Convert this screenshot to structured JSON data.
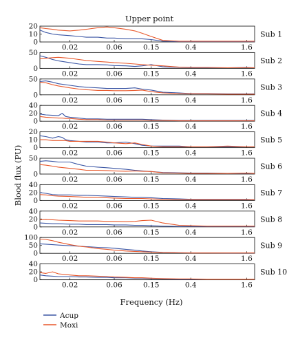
{
  "chart_data": {
    "type": "line",
    "title": "Upper point",
    "xlabel": "Frequency (Hz)",
    "ylabel": "Blood flux (PU)",
    "x_scale": "log",
    "xlim": [
      0.0095,
      1.95
    ],
    "x_ticks": [
      0.02,
      0.06,
      0.15,
      0.4,
      1.6
    ],
    "x_tick_labels": [
      "0.02",
      "0.06",
      "0.15",
      "0.4",
      "1.6"
    ],
    "legend": {
      "position": "bottom-left",
      "entries": [
        "Acup",
        "Moxi"
      ]
    },
    "colors": {
      "Acup": "#3a55a4",
      "Moxi": "#e8572a"
    },
    "panels": [
      {
        "label": "Sub 1",
        "ylim": [
          0,
          20
        ],
        "yticks": [
          0,
          10,
          20
        ],
        "x": [
          0.0095,
          0.011,
          0.013,
          0.015,
          0.02,
          0.025,
          0.03,
          0.04,
          0.05,
          0.06,
          0.08,
          0.1,
          0.12,
          0.15,
          0.2,
          0.3,
          0.4,
          0.6,
          1,
          1.6,
          1.95
        ],
        "series": [
          {
            "name": "Acup",
            "values": [
              15,
              12,
              10,
              9,
              8,
              7,
              6,
              6,
              5,
              5,
              4,
              4,
              4,
              3,
              1,
              0.5,
              0.5,
              0.5,
              0.5,
              0.5,
              0.5
            ]
          },
          {
            "name": "Moxi",
            "values": [
              18,
              17,
              16,
              15,
              14,
              15,
              16,
              18,
              19,
              18,
              16,
              14,
              11,
              7,
              2,
              1,
              1,
              1,
              1,
              1,
              1
            ]
          }
        ]
      },
      {
        "label": "Sub 2",
        "ylim": [
          0,
          50
        ],
        "yticks": [
          0,
          50
        ],
        "x": [
          0.0095,
          0.011,
          0.013,
          0.015,
          0.02,
          0.025,
          0.03,
          0.04,
          0.05,
          0.06,
          0.08,
          0.1,
          0.12,
          0.15,
          0.2,
          0.3,
          0.4,
          0.6,
          1,
          1.6,
          1.95
        ],
        "series": [
          {
            "name": "Acup",
            "values": [
              40,
              35,
              28,
              24,
              18,
              14,
              12,
              12,
              11,
              9,
              8,
              6,
              8,
              12,
              5,
              3,
              2,
              2,
              2,
              3,
              2
            ]
          },
          {
            "name": "Moxi",
            "values": [
              30,
              32,
              34,
              35,
              32,
              28,
              25,
              22,
              20,
              18,
              16,
              14,
              12,
              10,
              8,
              4,
              3,
              3,
              2,
              2,
              2
            ]
          }
        ]
      },
      {
        "label": "Sub 3",
        "ylim": [
          0,
          50
        ],
        "yticks": [
          0,
          50
        ],
        "x": [
          0.0095,
          0.011,
          0.013,
          0.015,
          0.02,
          0.025,
          0.03,
          0.04,
          0.05,
          0.06,
          0.08,
          0.1,
          0.12,
          0.15,
          0.2,
          0.3,
          0.4,
          0.6,
          1,
          1.6,
          1.95
        ],
        "series": [
          {
            "name": "Acup",
            "values": [
              42,
              44,
              40,
              35,
              30,
              26,
              24,
              22,
              20,
              20,
              20,
              22,
              18,
              15,
              8,
              6,
              4,
              4,
              3,
              3,
              3
            ]
          },
          {
            "name": "Moxi",
            "values": [
              40,
              38,
              32,
              28,
              22,
              18,
              16,
              14,
              14,
              13,
              13,
              14,
              15,
              10,
              6,
              4,
              3,
              3,
              2,
              2,
              2
            ]
          }
        ]
      },
      {
        "label": "Sub 4",
        "ylim": [
          0,
          40
        ],
        "yticks": [
          0,
          20,
          40
        ],
        "x": [
          0.0095,
          0.011,
          0.013,
          0.015,
          0.0165,
          0.018,
          0.02,
          0.025,
          0.03,
          0.04,
          0.05,
          0.06,
          0.08,
          0.1,
          0.12,
          0.15,
          0.2,
          0.3,
          0.4,
          0.6,
          1,
          1.6,
          1.95
        ],
        "series": [
          {
            "name": "Acup",
            "values": [
              18,
              16,
              15,
              14,
              20,
              12,
              10,
              8,
              6,
              6,
              5,
              5,
              5,
              5,
              5,
              4,
              3,
              2,
              2,
              2,
              2,
              2,
              2
            ]
          },
          {
            "name": "Moxi",
            "values": [
              12,
              10,
              9,
              8,
              8,
              7,
              7,
              5,
              4,
              4,
              3,
              3,
              3,
              3,
              3,
              2,
              2,
              1,
              1,
              1,
              1,
              1,
              1
            ]
          }
        ]
      },
      {
        "label": "Sub 5",
        "ylim": [
          0,
          20
        ],
        "yticks": [
          0,
          10,
          20
        ],
        "x": [
          0.0095,
          0.011,
          0.013,
          0.015,
          0.0165,
          0.018,
          0.02,
          0.025,
          0.03,
          0.04,
          0.05,
          0.06,
          0.08,
          0.1,
          0.12,
          0.15,
          0.2,
          0.3,
          0.4,
          0.6,
          1,
          1.6,
          1.95
        ],
        "series": [
          {
            "name": "Acup",
            "values": [
              15,
              14,
              12,
              14,
              13,
              10,
              9,
              8,
              7,
              7,
              6,
              6,
              7,
              5,
              3,
              2,
              2,
              2,
              1,
              1,
              1,
              1,
              1
            ]
          },
          {
            "name": "Moxi",
            "values": [
              10,
              10,
              9,
              9,
              9,
              9,
              8,
              8,
              8,
              8,
              7,
              6,
              5,
              6,
              4,
              2,
              1,
              1,
              1,
              1,
              2,
              1,
              1
            ]
          }
        ]
      },
      {
        "label": "Sub 6",
        "ylim": [
          0,
          50
        ],
        "yticks": [
          0,
          50
        ],
        "x": [
          0.0095,
          0.011,
          0.013,
          0.015,
          0.02,
          0.025,
          0.03,
          0.04,
          0.05,
          0.06,
          0.08,
          0.1,
          0.12,
          0.15,
          0.2,
          0.3,
          0.4,
          0.6,
          1,
          1.6,
          1.95
        ],
        "series": [
          {
            "name": "Acup",
            "values": [
              40,
              42,
              40,
              38,
              38,
              30,
              25,
              22,
              20,
              18,
              15,
              12,
              10,
              8,
              5,
              4,
              3,
              3,
              2,
              2,
              2
            ]
          },
          {
            "name": "Moxi",
            "values": [
              30,
              28,
              25,
              22,
              18,
              15,
              12,
              12,
              11,
              10,
              9,
              10,
              9,
              8,
              4,
              3,
              2,
              2,
              2,
              3,
              2
            ]
          }
        ]
      },
      {
        "label": "Sub 7",
        "ylim": [
          0,
          40
        ],
        "yticks": [
          0,
          20,
          40
        ],
        "x": [
          0.0095,
          0.011,
          0.013,
          0.015,
          0.02,
          0.025,
          0.03,
          0.04,
          0.05,
          0.06,
          0.08,
          0.1,
          0.12,
          0.15,
          0.2,
          0.3,
          0.4,
          0.6,
          1,
          1.6,
          1.95
        ],
        "series": [
          {
            "name": "Acup",
            "values": [
              20,
              18,
              15,
              14,
              14,
              13,
              13,
              12,
              11,
              10,
              9,
              8,
              8,
              7,
              5,
              4,
              3,
              3,
              3,
              3,
              2
            ]
          },
          {
            "name": "Moxi",
            "values": [
              15,
              14,
              12,
              11,
              10,
              9,
              8,
              8,
              7,
              6,
              5,
              5,
              5,
              4,
              3,
              2,
              2,
              2,
              2,
              2,
              2
            ]
          }
        ]
      },
      {
        "label": "Sub 8",
        "ylim": [
          0,
          40
        ],
        "yticks": [
          0,
          20,
          40
        ],
        "x": [
          0.0095,
          0.011,
          0.013,
          0.015,
          0.02,
          0.025,
          0.03,
          0.04,
          0.05,
          0.06,
          0.08,
          0.1,
          0.12,
          0.15,
          0.2,
          0.3,
          0.4,
          0.6,
          1,
          1.6,
          1.95
        ],
        "series": [
          {
            "name": "Acup",
            "values": [
              10,
              9,
              8,
              8,
              7,
              7,
              6,
              6,
              6,
              5,
              5,
              4,
              4,
              3,
              2,
              1,
              1,
              1,
              1,
              1,
              1
            ]
          },
          {
            "name": "Moxi",
            "values": [
              18,
              19,
              18,
              17,
              16,
              15,
              15,
              15,
              14,
              14,
              13,
              14,
              16,
              17,
              10,
              4,
              3,
              2,
              2,
              2,
              2
            ]
          }
        ]
      },
      {
        "label": "Sub 9",
        "ylim": [
          0,
          100
        ],
        "yticks": [
          0,
          50,
          100
        ],
        "x": [
          0.0095,
          0.011,
          0.013,
          0.015,
          0.02,
          0.025,
          0.03,
          0.04,
          0.05,
          0.06,
          0.08,
          0.1,
          0.12,
          0.15,
          0.2,
          0.3,
          0.4,
          0.6,
          1,
          1.6,
          1.95
        ],
        "series": [
          {
            "name": "Acup",
            "values": [
              60,
              58,
              55,
              52,
              48,
              45,
              42,
              38,
              35,
              32,
              25,
              20,
              15,
              10,
              6,
              4,
              3,
              3,
              2,
              2,
              2
            ]
          },
          {
            "name": "Moxi",
            "values": [
              90,
              88,
              80,
              70,
              55,
              45,
              40,
              30,
              25,
              20,
              15,
              12,
              10,
              8,
              5,
              3,
              2,
              2,
              2,
              2,
              2
            ]
          }
        ]
      },
      {
        "label": "Sub 10",
        "ylim": [
          0,
          40
        ],
        "yticks": [
          0,
          20,
          40
        ],
        "x": [
          0.0095,
          0.011,
          0.013,
          0.015,
          0.02,
          0.025,
          0.03,
          0.04,
          0.05,
          0.06,
          0.08,
          0.1,
          0.12,
          0.15,
          0.2,
          0.3,
          0.4,
          0.6,
          1,
          1.6,
          1.95
        ],
        "series": [
          {
            "name": "Acup",
            "values": [
              12,
              10,
              9,
              8,
              8,
              7,
              7,
              6,
              6,
              5,
              5,
              4,
              4,
              3,
              2,
              1,
              1,
              1,
              1,
              1,
              1
            ]
          },
          {
            "name": "Moxi",
            "values": [
              18,
              16,
              20,
              15,
              12,
              10,
              10,
              9,
              8,
              7,
              6,
              5,
              5,
              4,
              3,
              2,
              2,
              1,
              1,
              1,
              1
            ]
          }
        ]
      }
    ]
  }
}
